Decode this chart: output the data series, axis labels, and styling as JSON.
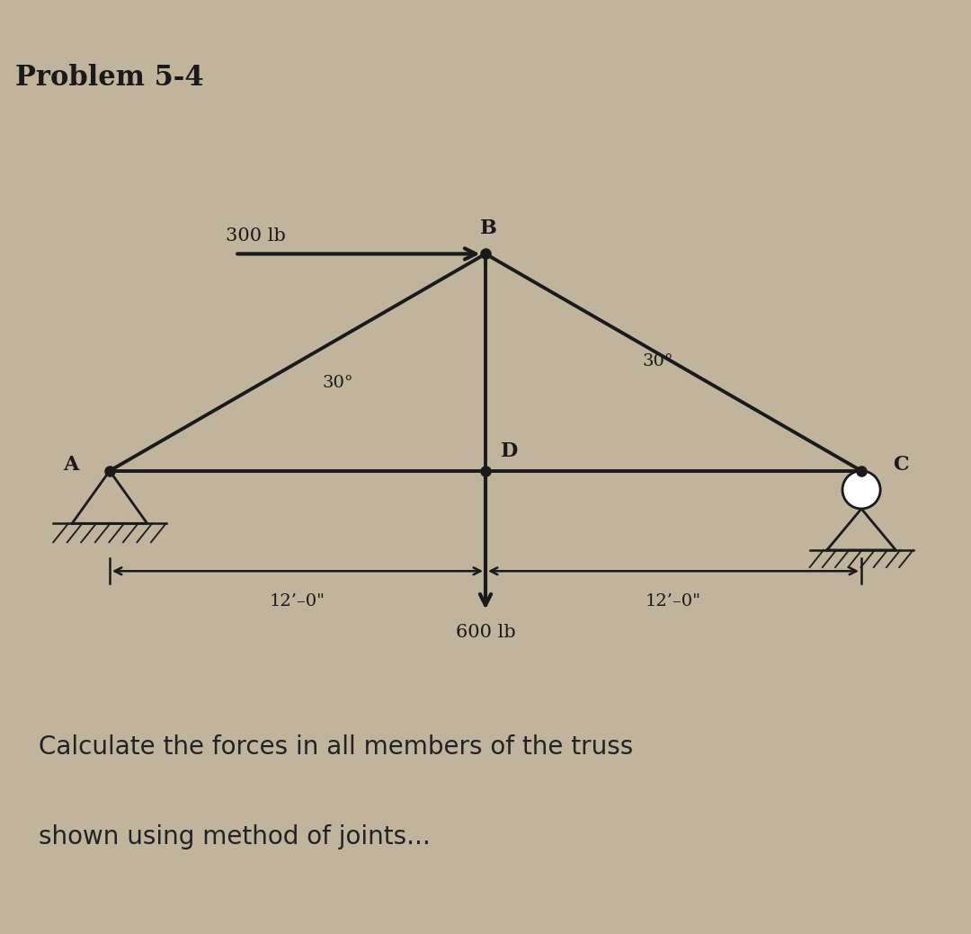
{
  "panel_bg": "#cbbfa8",
  "outer_bg": "#c0b49d",
  "bottom_bg": "#ffffff",
  "title": "Problem 5-4",
  "caption_line1": "Calculate the forces in all members of the truss",
  "caption_line2": "shown using method of joints...",
  "label_A": "A",
  "label_B": "B",
  "label_C": "C",
  "label_D": "D",
  "label_300": "300 lb",
  "label_600": "600 lb",
  "label_dim1": "12’–0\"",
  "label_dim2": "12’–0\"",
  "angle_AB": "30°",
  "angle_BC": "30°",
  "line_color": "#1a1a1a",
  "text_color": "#1a1a1a",
  "member_lw": 2.8,
  "force_lw": 3.0,
  "tan30": 0.57735
}
